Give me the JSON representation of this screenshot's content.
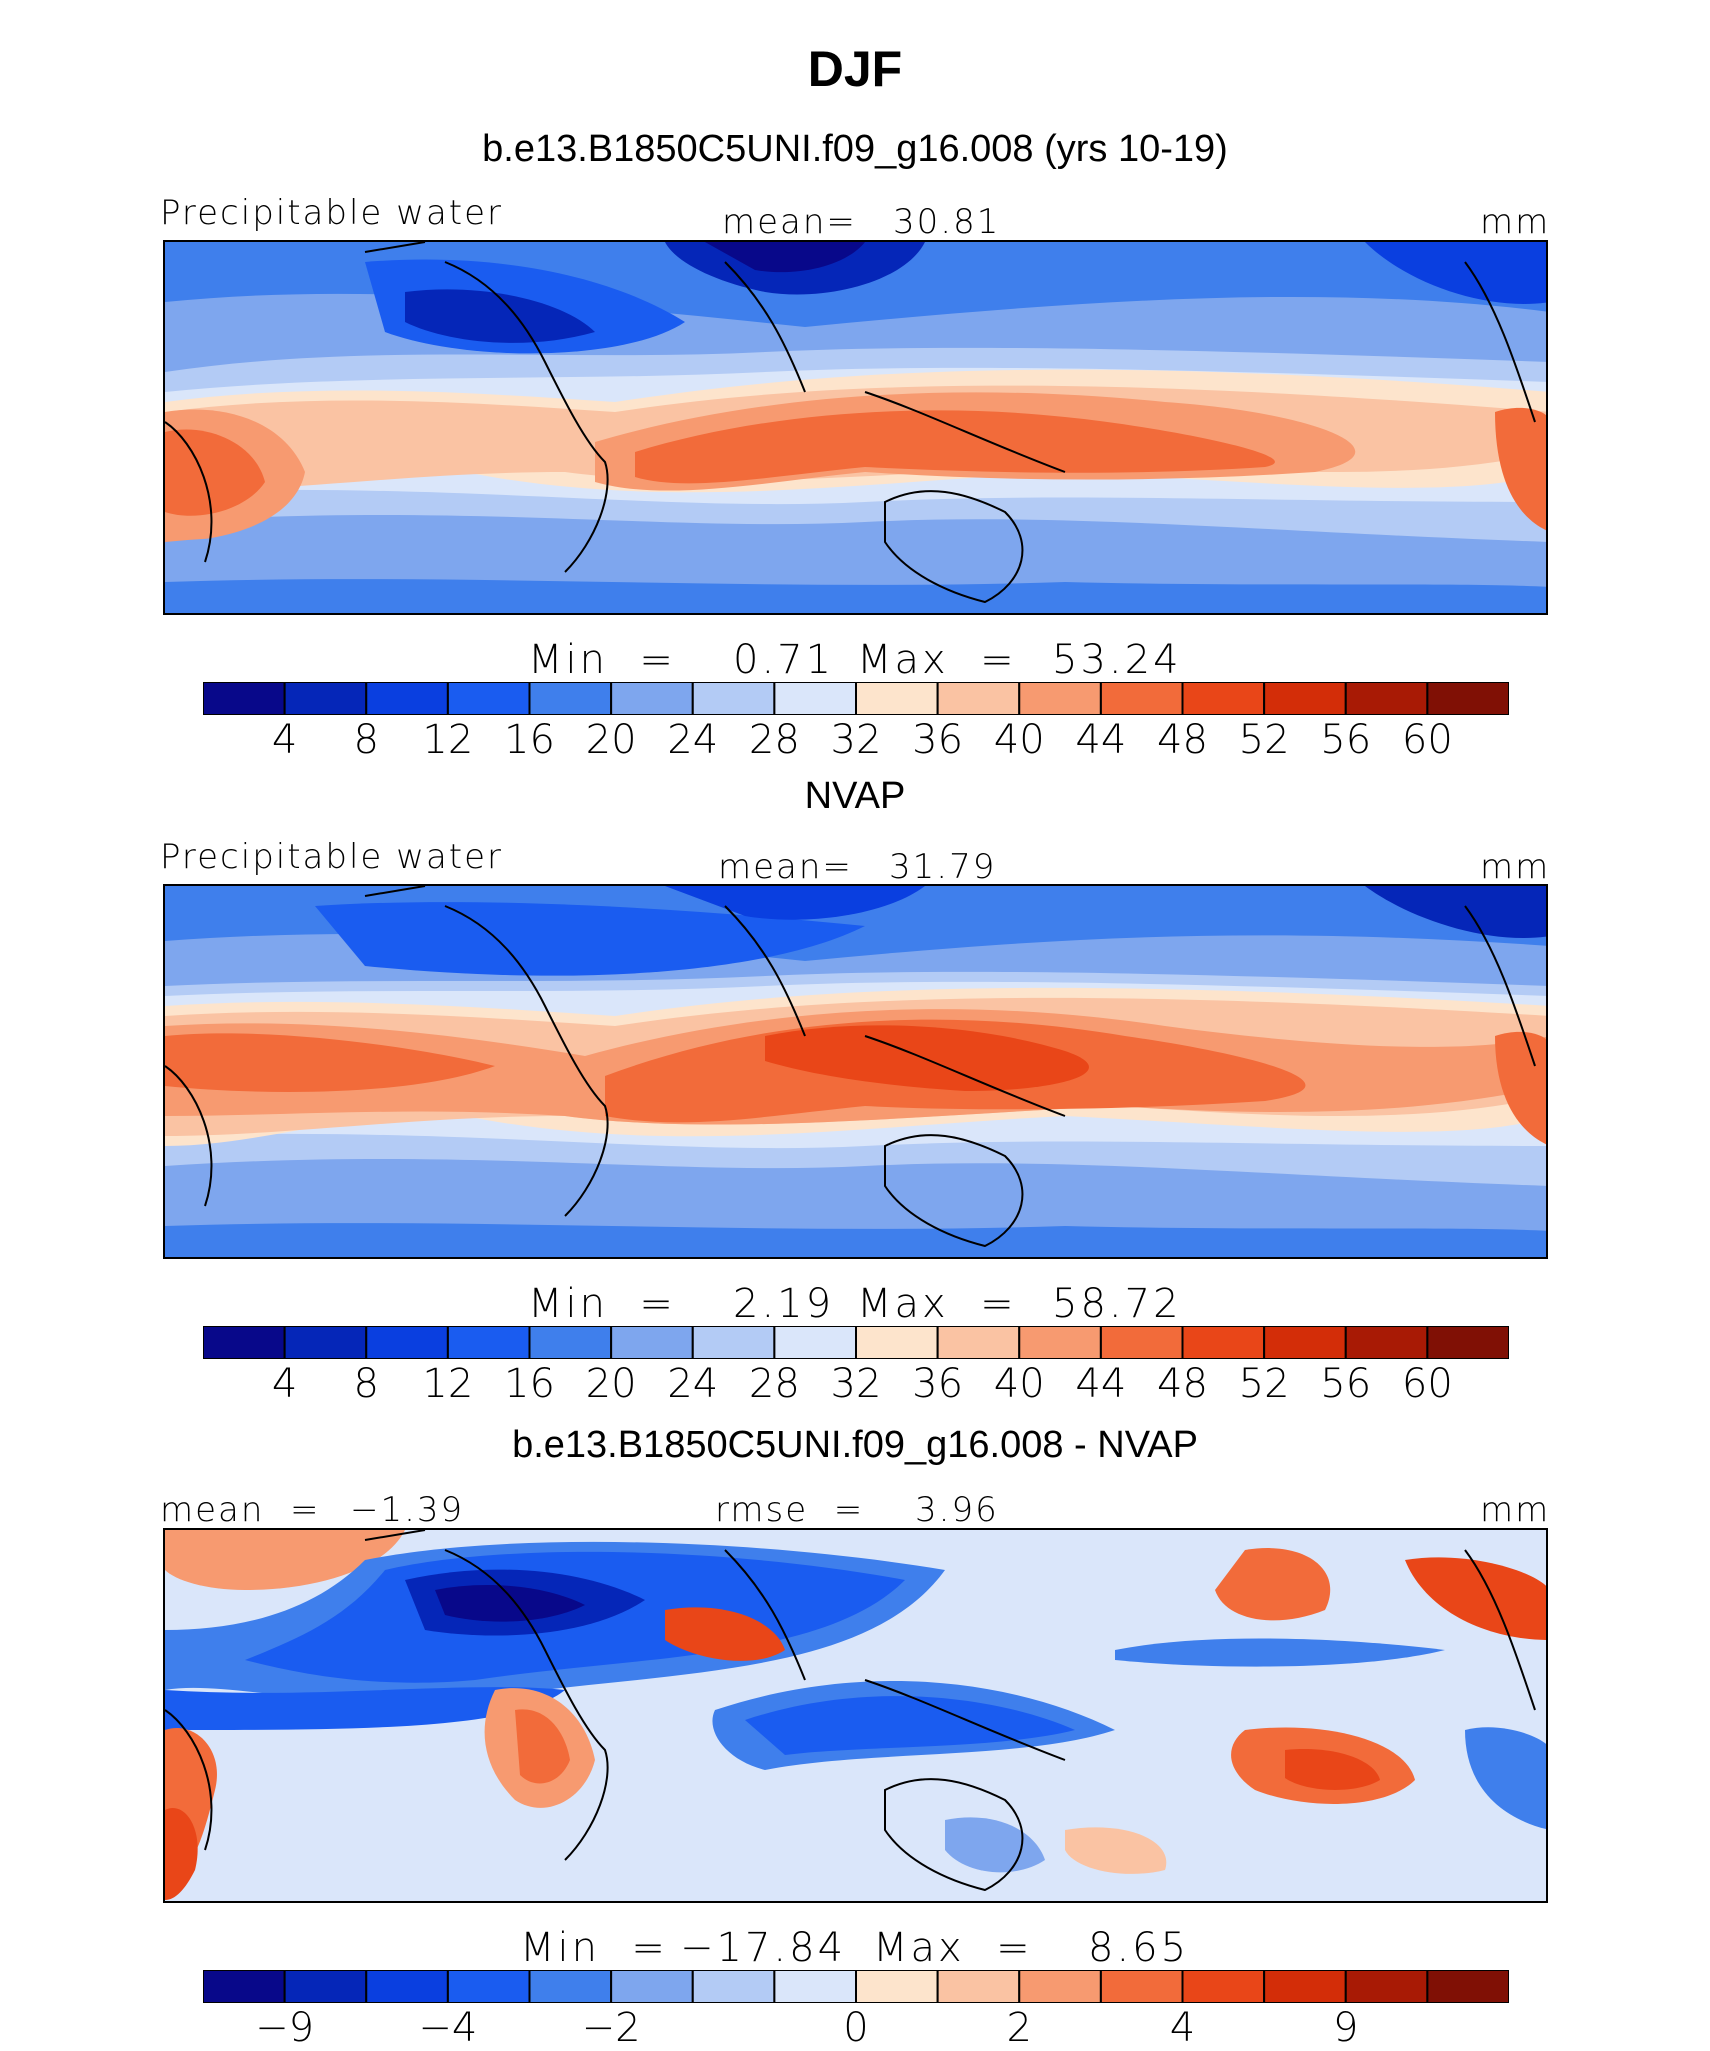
{
  "figure": {
    "title": "DJF"
  },
  "palette": [
    "#08088a",
    "#0526b8",
    "#0a3fe0",
    "#1a5cf0",
    "#3f7fec",
    "#7ea6ee",
    "#b3cbf5",
    "#dae6fa",
    "#fde4cc",
    "#fac3a3",
    "#f79a70",
    "#f26b3a",
    "#e94618",
    "#d32d08",
    "#a81a05",
    "#801005"
  ],
  "chart_data": [
    {
      "type": "heatmap",
      "panel_title": "b.e13.B1850C5UNI.f09_g16.008 (yrs 10-19)",
      "variable": "Precipitable water",
      "stat_label": "mean=",
      "stat_value": "30.81",
      "units": "mm",
      "min_label": "Min  =",
      "min_value": "0.71",
      "max_label": "Max  =",
      "max_value": "53.24",
      "colorbar_ticks": [
        "4",
        "8",
        "12",
        "16",
        "20",
        "24",
        "28",
        "32",
        "36",
        "40",
        "44",
        "48",
        "52",
        "56",
        "60"
      ]
    },
    {
      "type": "heatmap",
      "panel_title": "NVAP",
      "variable": "Precipitable water",
      "stat_label": "mean=",
      "stat_value": "31.79",
      "units": "mm",
      "min_label": "Min  =",
      "min_value": "2.19",
      "max_label": "Max  =",
      "max_value": "58.72",
      "colorbar_ticks": [
        "4",
        "8",
        "12",
        "16",
        "20",
        "24",
        "28",
        "32",
        "36",
        "40",
        "44",
        "48",
        "52",
        "56",
        "60"
      ]
    },
    {
      "type": "heatmap",
      "panel_title": "b.e13.B1850C5UNI.f09_g16.008 - NVAP",
      "left_label": "mean  =",
      "left_value": "−1.39",
      "stat_label": "rmse  =",
      "stat_value": "3.96",
      "units": "mm",
      "min_label": "Min  =",
      "min_value": "−17.84",
      "max_label": "Max  =",
      "max_value": "8.65",
      "colorbar_ticks": [
        "−9",
        "−4",
        "−2",
        "0",
        "2",
        "4",
        "9"
      ]
    }
  ]
}
